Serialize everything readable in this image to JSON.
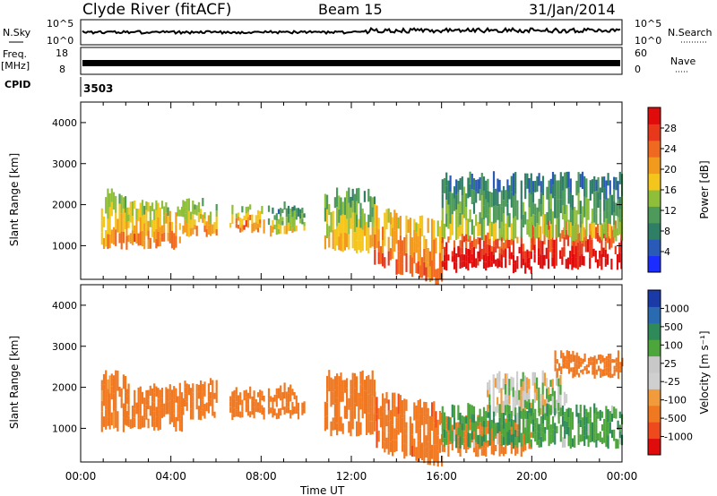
{
  "header": {
    "station": "Clyde River (fitACF)",
    "beam": "Beam 15",
    "date": "31/Jan/2014"
  },
  "nsky_panel": {
    "left_label": "N.Sky",
    "left_ticks": [
      "10^5",
      "10^0"
    ],
    "right_label": "N.Search",
    "right_ticks": [
      "10^5",
      "10^0"
    ]
  },
  "freq_panel": {
    "left_label_line1": "Freq.",
    "left_label_line2": "[MHz]",
    "left_ticks": [
      "18",
      "8"
    ],
    "right_label": "Nave",
    "right_ticks": [
      "60",
      "0"
    ]
  },
  "cpid_panel": {
    "label": "CPID",
    "value": "3503"
  },
  "time_axis": {
    "label": "Time UT",
    "ticks": [
      "00:00",
      "04:00",
      "08:00",
      "12:00",
      "16:00",
      "20:00",
      "00:00"
    ]
  },
  "colors": {
    "power_scale": [
      "#1a2cff",
      "#2a5ab8",
      "#2e7f66",
      "#4e9a5a",
      "#8fbf3a",
      "#f4c51c",
      "#f29a1e",
      "#ef6a20",
      "#e8381c",
      "#e00c0c"
    ],
    "velocity_scale": [
      "#e00c0c",
      "#ef4a1e",
      "#f07820",
      "#f19b3c",
      "#cfcfcf",
      "#c8c8c8",
      "#4ca63c",
      "#2f8a5a",
      "#2a6ab0",
      "#1a3aa8"
    ]
  },
  "chart_data": [
    {
      "type": "heatmap",
      "title": "",
      "quantity": "Power",
      "xlabel": "Time UT",
      "ylabel": "Slant Range [km]",
      "x_range_hours": [
        0,
        24
      ],
      "ylim": [
        180,
        4500
      ],
      "y_ticks": [
        1000,
        2000,
        3000,
        4000
      ],
      "colorbar": {
        "label": "Power [dB]",
        "ticks": [
          4,
          8,
          12,
          16,
          20,
          24,
          28
        ],
        "range": [
          0,
          32
        ]
      },
      "echo_regions": [
        {
          "t": [
            0.9,
            2.0
          ],
          "range_km": [
            1000,
            2300
          ],
          "level": 16
        },
        {
          "t": [
            2.0,
            4.5
          ],
          "range_km": [
            1000,
            2000
          ],
          "level": 18
        },
        {
          "t": [
            4.5,
            6.0
          ],
          "range_km": [
            1300,
            2100
          ],
          "level": 16
        },
        {
          "t": [
            6.6,
            8.1
          ],
          "range_km": [
            1400,
            1900
          ],
          "level": 18
        },
        {
          "t": [
            8.3,
            9.9
          ],
          "range_km": [
            1300,
            2000
          ],
          "level": 12
        },
        {
          "t": [
            10.8,
            13.0
          ],
          "range_km": [
            900,
            2300
          ],
          "level": 14
        },
        {
          "t": [
            13.0,
            16.0
          ],
          "range_km": [
            500,
            1900
          ],
          "level": 20
        },
        {
          "t": [
            16.0,
            20.0
          ],
          "range_km": [
            400,
            1200
          ],
          "level": 28
        },
        {
          "t": [
            20.0,
            24.0
          ],
          "range_km": [
            500,
            1500
          ],
          "level": 26
        },
        {
          "t": [
            16.0,
            24.0
          ],
          "range_km": [
            1200,
            2700
          ],
          "level": 10
        }
      ]
    },
    {
      "type": "heatmap",
      "title": "",
      "quantity": "Velocity",
      "xlabel": "Time UT",
      "ylabel": "Slant Range [km]",
      "x_range_hours": [
        0,
        24
      ],
      "ylim": [
        180,
        4500
      ],
      "y_ticks": [
        1000,
        2000,
        3000,
        4000
      ],
      "colorbar": {
        "label": "Velocity [m s⁻¹]",
        "ticks": [
          "1000",
          "500",
          "100",
          "25",
          "-25",
          "-100",
          "-500",
          "-1000"
        ]
      },
      "echo_regions": [
        {
          "t": [
            0.9,
            2.0
          ],
          "range_km": [
            1000,
            2300
          ],
          "level": -150
        },
        {
          "t": [
            2.0,
            4.5
          ],
          "range_km": [
            1000,
            2000
          ],
          "level": -200
        },
        {
          "t": [
            4.5,
            6.0
          ],
          "range_km": [
            1300,
            2100
          ],
          "level": -180
        },
        {
          "t": [
            6.6,
            8.1
          ],
          "range_km": [
            1300,
            1900
          ],
          "level": -200
        },
        {
          "t": [
            8.3,
            9.9
          ],
          "range_km": [
            1300,
            2000
          ],
          "level": -250
        },
        {
          "t": [
            10.8,
            13.0
          ],
          "range_km": [
            900,
            2300
          ],
          "level": -400
        },
        {
          "t": [
            13.0,
            16.0
          ],
          "range_km": [
            500,
            1900
          ],
          "level": -450
        },
        {
          "t": [
            16.0,
            20.0
          ],
          "range_km": [
            400,
            1200
          ],
          "level": -300
        },
        {
          "t": [
            18.0,
            21.5
          ],
          "range_km": [
            1300,
            2300
          ],
          "level": 0
        },
        {
          "t": [
            16.0,
            24.0
          ],
          "range_km": [
            600,
            1500
          ],
          "level": 80
        },
        {
          "t": [
            21.0,
            24.0
          ],
          "range_km": [
            2300,
            2800
          ],
          "level": -300
        }
      ]
    }
  ]
}
